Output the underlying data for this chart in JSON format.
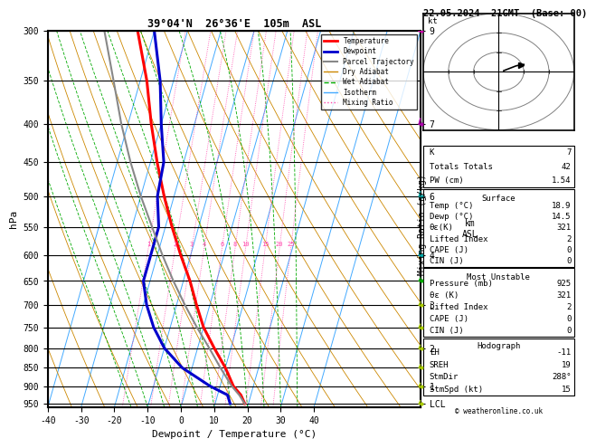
{
  "title": "39°04'N  26°36'E  105m  ASL",
  "date_title": "22.05.2024  21GMT  (Base: 00)",
  "xlabel": "Dewpoint / Temperature (°C)",
  "ylabel_left": "hPa",
  "pressure_levels": [
    300,
    350,
    400,
    450,
    500,
    550,
    600,
    650,
    700,
    750,
    800,
    850,
    900,
    950
  ],
  "pressure_labels": [
    "300",
    "350",
    "400",
    "450",
    "500",
    "550",
    "600",
    "650",
    "700",
    "750",
    "800",
    "850",
    "900",
    "950"
  ],
  "p_min": 300,
  "p_max": 960,
  "x_min": -40,
  "x_max": 40,
  "skew": 32.0,
  "temp_profile": {
    "pressure": [
      950,
      925,
      900,
      850,
      800,
      750,
      700,
      650,
      600,
      550,
      500,
      450,
      400,
      350,
      300
    ],
    "temperature": [
      18.9,
      17.0,
      14.0,
      10.0,
      5.0,
      0.0,
      -4.0,
      -8.0,
      -13.0,
      -18.0,
      -23.0,
      -28.0,
      -33.0,
      -38.0,
      -45.0
    ]
  },
  "dewpoint_profile": {
    "pressure": [
      950,
      925,
      900,
      850,
      800,
      750,
      700,
      650,
      600,
      550,
      500,
      450,
      400,
      350,
      300
    ],
    "dewpoint": [
      14.5,
      13.0,
      7.0,
      -3.0,
      -10.0,
      -15.0,
      -19.0,
      -22.0,
      -22.0,
      -22.0,
      -25.0,
      -26.0,
      -30.0,
      -34.0,
      -40.0
    ]
  },
  "parcel_profile": {
    "pressure": [
      950,
      925,
      900,
      850,
      800,
      750,
      700,
      650,
      600,
      550,
      500,
      450,
      400,
      350,
      300
    ],
    "temperature": [
      18.9,
      16.5,
      13.5,
      8.5,
      3.5,
      -2.0,
      -7.5,
      -13.0,
      -18.5,
      -24.0,
      -30.0,
      -36.0,
      -42.0,
      -48.0,
      -55.0
    ]
  },
  "colors": {
    "temperature": "#ff0000",
    "dewpoint": "#0000cc",
    "parcel": "#888888",
    "dry_adiabat": "#cc8800",
    "wet_adiabat": "#00aa00",
    "isotherm": "#44aaff",
    "mixing_ratio": "#ff44aa",
    "background": "#ffffff",
    "grid": "#000000"
  },
  "km_ticks": {
    "300": "9",
    "400": "7",
    "500": "6",
    "600": "4",
    "700": "3",
    "800": "2",
    "900": "1",
    "950": "LCL"
  },
  "mixing_ratio_lines": [
    1,
    2,
    3,
    4,
    6,
    8,
    10,
    15,
    20,
    25
  ],
  "mr_label_pressure": 590,
  "isotherm_temps": [
    -40,
    -30,
    -20,
    -10,
    0,
    10,
    20,
    30,
    40
  ],
  "dry_adiabat_thetas": [
    -30,
    -20,
    -10,
    0,
    10,
    20,
    30,
    40,
    50,
    60,
    70,
    80,
    90,
    100,
    110,
    120,
    130,
    140
  ],
  "moist_adiabat_starts": [
    -15,
    -10,
    -5,
    0,
    5,
    10,
    15,
    20,
    25,
    30,
    35
  ],
  "stats": {
    "K": "7",
    "Totals_Totals": "42",
    "PW_cm": "1.54",
    "Surface_Temp": "18.9",
    "Surface_Dewp": "14.5",
    "Surface_ThetaE": "321",
    "Surface_LiftedIndex": "2",
    "Surface_CAPE": "0",
    "Surface_CIN": "0",
    "MU_Pressure": "925",
    "MU_ThetaE": "321",
    "MU_LiftedIndex": "2",
    "MU_CAPE": "0",
    "MU_CIN": "0",
    "EH": "-11",
    "SREH": "19",
    "StmDir": "288°",
    "StmSpd": "15"
  },
  "wind_levels": [
    950,
    900,
    850,
    800,
    750,
    700,
    650,
    600,
    500,
    400,
    300
  ],
  "wind_colors": {
    "950": "#aacc00",
    "900": "#aacc00",
    "850": "#aacc00",
    "800": "#aacc00",
    "750": "#aacc00",
    "700": "#aacc00",
    "650": "#00aa00",
    "600": "#00aaaa",
    "500": "#00aaaa",
    "400": "#aa00aa",
    "300": "#cc00aa"
  },
  "hodograph_u": [
    2.0,
    3.0,
    5.0,
    7.0,
    9.0
  ],
  "hodograph_v": [
    0.5,
    1.0,
    2.0,
    3.0,
    3.5
  ]
}
